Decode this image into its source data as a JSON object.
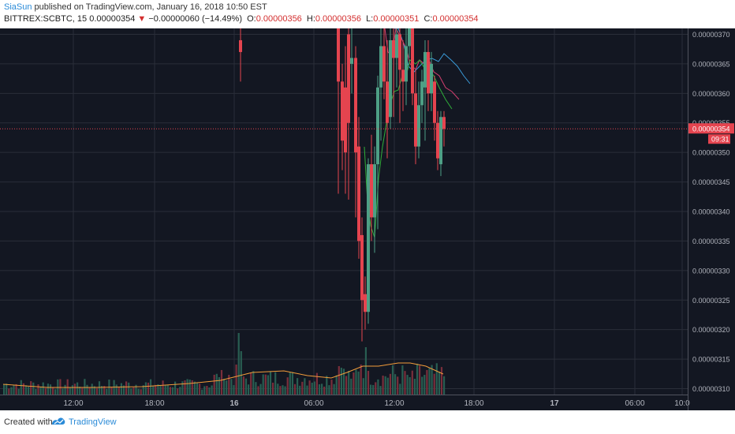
{
  "header": {
    "author": "SiaSun",
    "published": "published on TradingView.com, January 16, 2018 10:50 EST",
    "symbol": "BITTREX:SCBTC, 15",
    "price": "0.00000354",
    "arrow": "▼",
    "change": "−0.00000060 (−14.49%)",
    "o_label": "O:",
    "o_value": "0.00000356",
    "h_label": "H:",
    "h_value": "0.00000356",
    "l_label": "L:",
    "l_value": "0.00000351",
    "c_label": "C:",
    "c_value": "0.00000354"
  },
  "footer": {
    "created_with": "Created with",
    "brand": "TradingView"
  },
  "colors": {
    "up": "#4e9f85",
    "down": "#e5444f",
    "background": "#131722",
    "grid": "#2a2e39",
    "volume_ma": "#f39c3a",
    "ma_blue": "#3a9bd9",
    "ma_pink": "#d23f6e",
    "ma_green": "#2fae3a"
  },
  "chart_data": {
    "type": "candlestick",
    "ylim": [
      3.09e-06,
      3.71e-06
    ],
    "y_ticks": [
      "0.00000370",
      "0.00000365",
      "0.00000360",
      "0.00000355",
      "0.00000350",
      "0.00000345",
      "0.00000340",
      "0.00000335",
      "0.00000330",
      "0.00000325",
      "0.00000320",
      "0.00000315",
      "0.00000310"
    ],
    "x_ticks": [
      "12:00",
      "18:00",
      "16",
      "06:00",
      "12:00",
      "18:00",
      "17",
      "06:00",
      "10:0"
    ],
    "last_price": "0.00000354",
    "countdown": "09:31",
    "grid": true
  }
}
